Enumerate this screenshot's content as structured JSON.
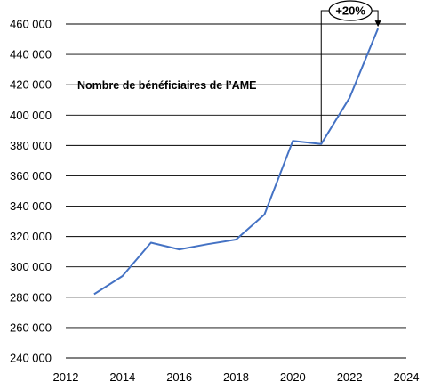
{
  "chart_data": {
    "type": "line",
    "title": "Nombre de bénéficiaires de l’AME",
    "xlabel": "",
    "ylabel": "",
    "xlim": [
      2012,
      2024
    ],
    "ylim": [
      240000,
      460000
    ],
    "x_ticks": [
      2012,
      2014,
      2016,
      2018,
      2020,
      2022,
      2024
    ],
    "x_tick_labels": [
      "2012",
      "2014",
      "2016",
      "2018",
      "2020",
      "2022",
      "2024"
    ],
    "y_ticks": [
      240000,
      260000,
      280000,
      300000,
      320000,
      340000,
      360000,
      380000,
      400000,
      420000,
      440000,
      460000
    ],
    "y_tick_labels": [
      "240 000",
      "260 000",
      "280 000",
      "300 000",
      "320 000",
      "340 000",
      "360 000",
      "380 000",
      "400 000",
      "420 000",
      "440 000",
      "460 000"
    ],
    "grid": "horizontal",
    "line_color": "#4472C4",
    "series": [
      {
        "x": [
          2013,
          2014,
          2015,
          2016,
          2017,
          2018,
          2019,
          2020,
          2021,
          2022,
          2023
        ],
        "y": [
          282000,
          294000,
          316000,
          311500,
          315000,
          318000,
          334500,
          383000,
          381000,
          411500,
          457000
        ]
      }
    ],
    "annotation": {
      "text": "+20%",
      "from_x": 2021,
      "to_x": 2023
    }
  }
}
